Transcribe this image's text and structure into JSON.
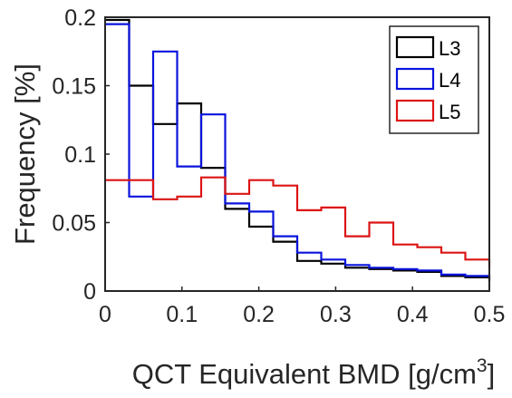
{
  "chart_data": {
    "type": "line",
    "subtype": "stairs",
    "title": "",
    "xlabel": "QCT Equivalent BMD [g/cm",
    "xlabel_superscript": "3",
    "xlabel_suffix": "]",
    "ylabel": "Frequency [%]",
    "xlim": [
      0,
      0.5
    ],
    "ylim": [
      0,
      0.2
    ],
    "xticks": [
      0,
      0.1,
      0.2,
      0.3,
      0.4,
      0.5
    ],
    "xtick_labels": [
      "0",
      "0.1",
      "0.2",
      "0.3",
      "0.4",
      "0.5"
    ],
    "yticks": [
      0,
      0.05,
      0.1,
      0.15,
      0.2
    ],
    "ytick_labels": [
      "0",
      "0.05",
      "0.1",
      "0.15",
      "0.2"
    ],
    "grid": false,
    "legend_position": "top-right",
    "bin_edges": [
      0,
      0.0312,
      0.0625,
      0.0938,
      0.125,
      0.1562,
      0.1875,
      0.2188,
      0.25,
      0.2812,
      0.3125,
      0.3438,
      0.375,
      0.4062,
      0.4375,
      0.4688,
      0.5
    ],
    "series": [
      {
        "name": "L3",
        "color": "#000000",
        "values": [
          0.198,
          0.15,
          0.122,
          0.137,
          0.09,
          0.06,
          0.047,
          0.036,
          0.022,
          0.02,
          0.017,
          0.016,
          0.015,
          0.014,
          0.011,
          0.01,
          0.007
        ]
      },
      {
        "name": "L4",
        "color": "#0a14dc",
        "values": [
          0.195,
          0.069,
          0.175,
          0.091,
          0.129,
          0.064,
          0.058,
          0.04,
          0.028,
          0.023,
          0.019,
          0.017,
          0.016,
          0.015,
          0.012,
          0.011,
          0.009
        ]
      },
      {
        "name": "L5",
        "color": "#dc1414",
        "values": [
          0.081,
          0.081,
          0.067,
          0.069,
          0.083,
          0.071,
          0.081,
          0.077,
          0.059,
          0.061,
          0.04,
          0.05,
          0.034,
          0.032,
          0.028,
          0.023,
          0.017
        ]
      }
    ]
  }
}
